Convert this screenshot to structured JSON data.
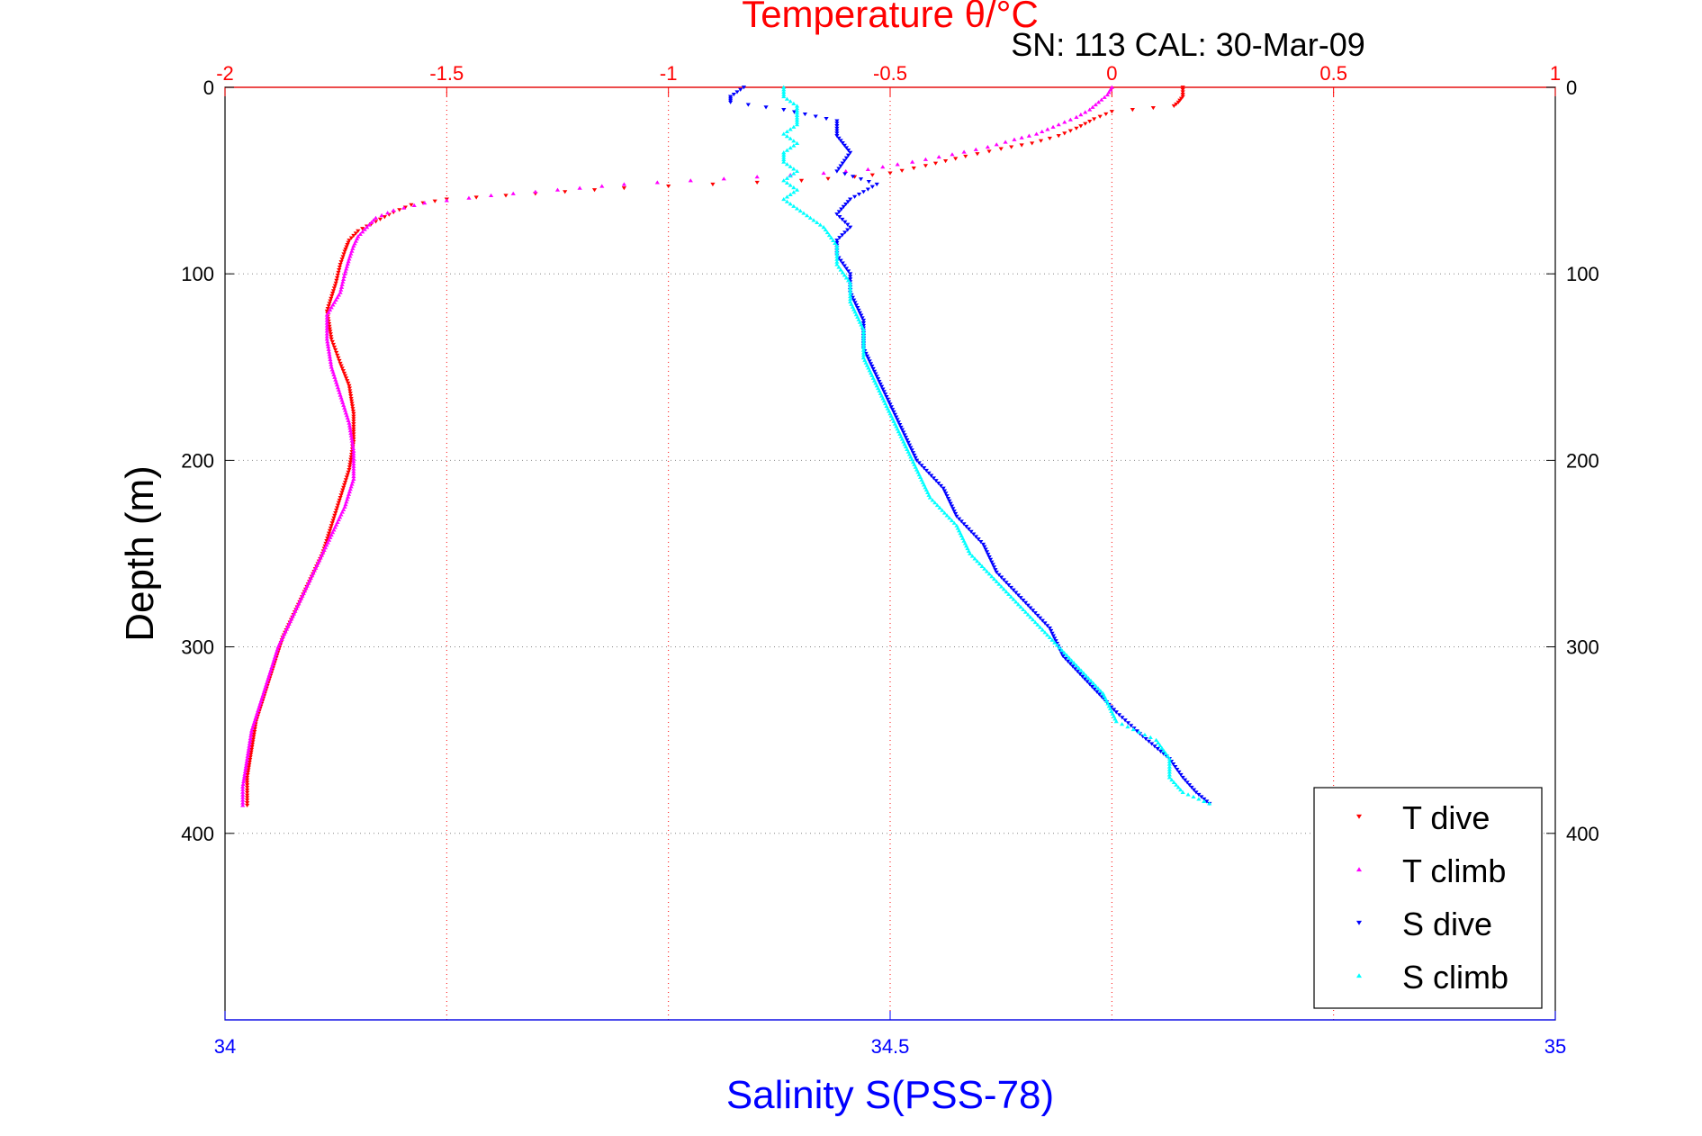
{
  "chart_data": {
    "type": "scatter",
    "title": "Temperature θ/°C",
    "subtitle": "SN: 113  CAL: 30-Mar-09",
    "ylabel": "Depth (m)",
    "x_top_label": "Temperature θ/°C",
    "x_bottom_label": "Salinity S(PSS-78)",
    "x_top_range": [
      -2,
      1
    ],
    "x_top_ticks": [
      "-2",
      "-1.5",
      "-1",
      "-0.5",
      "0",
      "0.5",
      "1"
    ],
    "x_bottom_range": [
      34,
      35
    ],
    "x_bottom_ticks": [
      "34",
      "34.5",
      "35"
    ],
    "y_range": [
      0,
      500
    ],
    "y_reversed": true,
    "y_ticks": [
      "0",
      "100",
      "200",
      "300",
      "400"
    ],
    "grid": true,
    "legend_position": "bottom-right",
    "colors": {
      "temperature_axis": "#ff0000",
      "salinity_axis": "#0000ff",
      "grid": "#888888"
    },
    "series": [
      {
        "name": "T dive",
        "axis": "temperature",
        "color": "#ff0000",
        "marker": "triangle-down",
        "points": [
          [
            0.16,
            0
          ],
          [
            0.16,
            5
          ],
          [
            0.15,
            8
          ],
          [
            0.14,
            10
          ],
          [
            0.0,
            13
          ],
          [
            -0.04,
            17
          ],
          [
            -0.08,
            22
          ],
          [
            -0.12,
            26
          ],
          [
            -0.18,
            30
          ],
          [
            -0.25,
            33
          ],
          [
            -0.33,
            37
          ],
          [
            -0.42,
            42
          ],
          [
            -0.5,
            46
          ],
          [
            -0.58,
            48
          ],
          [
            -0.7,
            50
          ],
          [
            -0.9,
            52
          ],
          [
            -1.1,
            54
          ],
          [
            -1.3,
            57
          ],
          [
            -1.5,
            60
          ],
          [
            -1.58,
            63
          ],
          [
            -1.62,
            67
          ],
          [
            -1.66,
            72
          ],
          [
            -1.7,
            77
          ],
          [
            -1.72,
            82
          ],
          [
            -1.73,
            88
          ],
          [
            -1.74,
            95
          ],
          [
            -1.75,
            105
          ],
          [
            -1.77,
            120
          ],
          [
            -1.76,
            135
          ],
          [
            -1.74,
            148
          ],
          [
            -1.72,
            160
          ],
          [
            -1.71,
            175
          ],
          [
            -1.71,
            190
          ],
          [
            -1.72,
            205
          ],
          [
            -1.74,
            220
          ],
          [
            -1.76,
            235
          ],
          [
            -1.78,
            250
          ],
          [
            -1.81,
            265
          ],
          [
            -1.84,
            280
          ],
          [
            -1.87,
            295
          ],
          [
            -1.89,
            310
          ],
          [
            -1.91,
            325
          ],
          [
            -1.93,
            340
          ],
          [
            -1.94,
            355
          ],
          [
            -1.95,
            370
          ],
          [
            -1.95,
            385
          ]
        ]
      },
      {
        "name": "T climb",
        "axis": "temperature",
        "color": "#ff00ff",
        "marker": "triangle-up",
        "points": [
          [
            0.0,
            0
          ],
          [
            -0.01,
            4
          ],
          [
            -0.03,
            8
          ],
          [
            -0.05,
            12
          ],
          [
            -0.08,
            16
          ],
          [
            -0.12,
            20
          ],
          [
            -0.17,
            25
          ],
          [
            -0.22,
            28
          ],
          [
            -0.28,
            32
          ],
          [
            -0.36,
            36
          ],
          [
            -0.45,
            40
          ],
          [
            -0.55,
            44
          ],
          [
            -0.65,
            46
          ],
          [
            -0.8,
            48
          ],
          [
            -0.95,
            50
          ],
          [
            -1.1,
            52
          ],
          [
            -1.25,
            55
          ],
          [
            -1.4,
            58
          ],
          [
            -1.55,
            62
          ],
          [
            -1.62,
            66
          ],
          [
            -1.66,
            70
          ],
          [
            -1.68,
            75
          ],
          [
            -1.7,
            80
          ],
          [
            -1.71,
            85
          ],
          [
            -1.72,
            92
          ],
          [
            -1.73,
            100
          ],
          [
            -1.74,
            110
          ],
          [
            -1.77,
            122
          ],
          [
            -1.77,
            135
          ],
          [
            -1.76,
            150
          ],
          [
            -1.74,
            165
          ],
          [
            -1.72,
            180
          ],
          [
            -1.71,
            195
          ],
          [
            -1.71,
            210
          ],
          [
            -1.73,
            225
          ],
          [
            -1.76,
            240
          ],
          [
            -1.79,
            255
          ],
          [
            -1.82,
            270
          ],
          [
            -1.85,
            285
          ],
          [
            -1.88,
            300
          ],
          [
            -1.9,
            315
          ],
          [
            -1.92,
            330
          ],
          [
            -1.94,
            345
          ],
          [
            -1.95,
            360
          ],
          [
            -1.96,
            375
          ],
          [
            -1.96,
            385
          ]
        ]
      },
      {
        "name": "S dive",
        "axis": "salinity",
        "color": "#0000ff",
        "marker": "triangle-down",
        "points": [
          [
            34.39,
            0
          ],
          [
            34.38,
            5
          ],
          [
            34.38,
            8
          ],
          [
            34.42,
            12
          ],
          [
            34.46,
            18
          ],
          [
            34.46,
            26
          ],
          [
            34.47,
            35
          ],
          [
            34.46,
            45
          ],
          [
            34.49,
            52
          ],
          [
            34.47,
            60
          ],
          [
            34.46,
            68
          ],
          [
            34.47,
            75
          ],
          [
            34.46,
            82
          ],
          [
            34.46,
            90
          ],
          [
            34.47,
            100
          ],
          [
            34.47,
            110
          ],
          [
            34.48,
            125
          ],
          [
            34.48,
            140
          ],
          [
            34.49,
            155
          ],
          [
            34.5,
            170
          ],
          [
            34.51,
            185
          ],
          [
            34.52,
            200
          ],
          [
            34.54,
            215
          ],
          [
            34.55,
            230
          ],
          [
            34.57,
            245
          ],
          [
            34.58,
            260
          ],
          [
            34.6,
            275
          ],
          [
            34.62,
            290
          ],
          [
            34.63,
            305
          ],
          [
            34.65,
            320
          ],
          [
            34.67,
            335
          ],
          [
            34.69,
            348
          ],
          [
            34.71,
            360
          ],
          [
            34.72,
            370
          ],
          [
            34.73,
            378
          ],
          [
            34.74,
            384
          ]
        ]
      },
      {
        "name": "S climb",
        "axis": "salinity",
        "color": "#00ffff",
        "marker": "triangle-up",
        "points": [
          [
            34.42,
            0
          ],
          [
            34.42,
            5
          ],
          [
            34.43,
            10
          ],
          [
            34.43,
            15
          ],
          [
            34.43,
            20
          ],
          [
            34.42,
            25
          ],
          [
            34.43,
            30
          ],
          [
            34.42,
            35
          ],
          [
            34.42,
            40
          ],
          [
            34.43,
            45
          ],
          [
            34.42,
            50
          ],
          [
            34.43,
            55
          ],
          [
            34.42,
            60
          ],
          [
            34.43,
            65
          ],
          [
            34.44,
            70
          ],
          [
            34.45,
            75
          ],
          [
            34.46,
            85
          ],
          [
            34.46,
            95
          ],
          [
            34.47,
            105
          ],
          [
            34.47,
            115
          ],
          [
            34.48,
            130
          ],
          [
            34.48,
            145
          ],
          [
            34.49,
            160
          ],
          [
            34.5,
            175
          ],
          [
            34.51,
            190
          ],
          [
            34.52,
            205
          ],
          [
            34.53,
            220
          ],
          [
            34.55,
            235
          ],
          [
            34.56,
            250
          ],
          [
            34.58,
            265
          ],
          [
            34.6,
            280
          ],
          [
            34.62,
            295
          ],
          [
            34.64,
            310
          ],
          [
            34.66,
            325
          ],
          [
            34.67,
            340
          ],
          [
            34.7,
            350
          ],
          [
            34.71,
            360
          ],
          [
            34.71,
            370
          ],
          [
            34.72,
            378
          ],
          [
            34.74,
            384
          ]
        ]
      }
    ]
  }
}
